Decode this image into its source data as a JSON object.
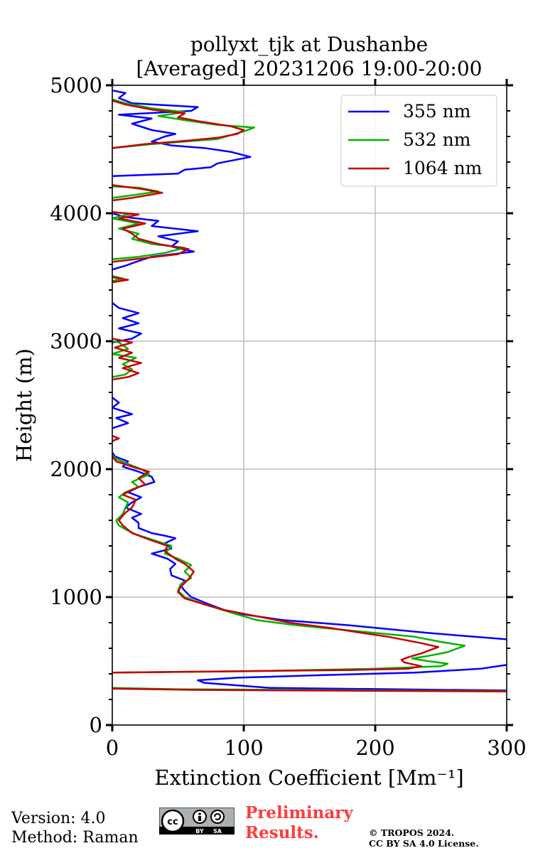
{
  "footer": {
    "version": "Version: 4.0",
    "method": "Method: Raman",
    "preliminary_line1": "Preliminary",
    "preliminary_line2": "Results.",
    "copyright_line1": "© TROPOS 2024.",
    "copyright_line2": "CC BY SA 4.0 License.",
    "license_badge_by": "BY",
    "license_badge_sa": "SA",
    "license_badge_cc": "cc"
  },
  "chart_data": {
    "type": "line",
    "title_line1": "pollyxt_tjk at Dushanbe",
    "title_line2": "[Averaged] 20231206 19:00-20:00",
    "xlabel": "Extinction Coefficient [Mm⁻¹]",
    "ylabel": "Height (m)",
    "xlim": [
      0,
      300
    ],
    "ylim": [
      0,
      5000
    ],
    "xticks": [
      0,
      100,
      200,
      300
    ],
    "yticks": [
      0,
      1000,
      2000,
      3000,
      4000,
      5000
    ],
    "grid": true,
    "legend_position": "top-right",
    "series": [
      {
        "name": "355 nm",
        "color": "#0000ff",
        "points": [
          [
            300,
            270
          ],
          [
            120,
            290
          ],
          [
            70,
            330
          ],
          [
            65,
            350
          ],
          [
            95,
            370
          ],
          [
            160,
            390
          ],
          [
            230,
            410
          ],
          [
            280,
            440
          ],
          [
            300,
            470
          ],
          [
            null,
            null
          ],
          [
            300,
            670
          ],
          [
            240,
            720
          ],
          [
            180,
            780
          ],
          [
            130,
            820
          ],
          [
            90,
            880
          ],
          [
            72,
            950
          ],
          [
            60,
            1000
          ],
          [
            55,
            1050
          ],
          [
            52,
            1090
          ],
          [
            55,
            1130
          ],
          [
            45,
            1170
          ],
          [
            44,
            1220
          ],
          [
            48,
            1260
          ],
          [
            42,
            1300
          ],
          [
            30,
            1340
          ],
          [
            45,
            1380
          ],
          [
            40,
            1420
          ],
          [
            48,
            1460
          ],
          [
            40,
            1480
          ],
          [
            30,
            1500
          ],
          [
            20,
            1540
          ],
          [
            20,
            1580
          ],
          [
            15,
            1620
          ],
          [
            22,
            1650
          ],
          [
            10,
            1700
          ],
          [
            15,
            1740
          ],
          [
            22,
            1780
          ],
          [
            12,
            1820
          ],
          [
            20,
            1860
          ],
          [
            32,
            1900
          ],
          [
            30,
            1940
          ],
          [
            20,
            1980
          ],
          [
            8,
            2020
          ],
          [
            12,
            2060
          ],
          [
            2,
            2100
          ],
          [
            0,
            2130
          ],
          [
            null,
            null
          ],
          [
            0,
            2320
          ],
          [
            12,
            2360
          ],
          [
            3,
            2400
          ],
          [
            15,
            2430
          ],
          [
            0,
            2480
          ],
          [
            5,
            2520
          ],
          [
            0,
            2560
          ],
          [
            null,
            null
          ],
          [
            0,
            2990
          ],
          [
            15,
            3020
          ],
          [
            22,
            3060
          ],
          [
            5,
            3100
          ],
          [
            20,
            3140
          ],
          [
            8,
            3180
          ],
          [
            20,
            3220
          ],
          [
            5,
            3260
          ],
          [
            0,
            3300
          ],
          [
            null,
            null
          ],
          [
            0,
            3560
          ],
          [
            10,
            3590
          ],
          [
            18,
            3620
          ],
          [
            30,
            3660
          ],
          [
            62,
            3700
          ],
          [
            45,
            3740
          ],
          [
            50,
            3780
          ],
          [
            35,
            3820
          ],
          [
            65,
            3860
          ],
          [
            30,
            3900
          ],
          [
            35,
            3940
          ],
          [
            10,
            3970
          ],
          [
            0,
            4000
          ],
          [
            null,
            null
          ],
          [
            0,
            4290
          ],
          [
            50,
            4310
          ],
          [
            55,
            4340
          ],
          [
            75,
            4360
          ],
          [
            80,
            4390
          ],
          [
            105,
            4440
          ],
          [
            90,
            4480
          ],
          [
            70,
            4510
          ],
          [
            45,
            4530
          ],
          [
            30,
            4560
          ],
          [
            40,
            4600
          ],
          [
            48,
            4620
          ],
          [
            30,
            4650
          ],
          [
            15,
            4700
          ],
          [
            30,
            4740
          ],
          [
            5,
            4770
          ],
          [
            60,
            4800
          ],
          [
            65,
            4830
          ],
          [
            15,
            4860
          ],
          [
            5,
            4900
          ],
          [
            10,
            4940
          ],
          [
            0,
            4960
          ]
        ]
      },
      {
        "name": "532 nm",
        "color": "#00b400",
        "points": [
          [
            300,
            265
          ],
          [
            50,
            280
          ],
          [
            0,
            290
          ],
          [
            null,
            null
          ],
          [
            0,
            410
          ],
          [
            100,
            420
          ],
          [
            200,
            440
          ],
          [
            250,
            460
          ],
          [
            255,
            480
          ],
          [
            240,
            500
          ],
          [
            228,
            520
          ],
          [
            240,
            540
          ],
          [
            255,
            570
          ],
          [
            268,
            620
          ],
          [
            250,
            650
          ],
          [
            230,
            690
          ],
          [
            200,
            720
          ],
          [
            170,
            750
          ],
          [
            140,
            780
          ],
          [
            110,
            820
          ],
          [
            90,
            880
          ],
          [
            68,
            950
          ],
          [
            55,
            1000
          ],
          [
            50,
            1050
          ],
          [
            52,
            1100
          ],
          [
            60,
            1150
          ],
          [
            55,
            1200
          ],
          [
            60,
            1250
          ],
          [
            50,
            1300
          ],
          [
            40,
            1340
          ],
          [
            45,
            1400
          ],
          [
            30,
            1450
          ],
          [
            18,
            1490
          ],
          [
            10,
            1530
          ],
          [
            5,
            1560
          ],
          [
            3,
            1600
          ],
          [
            8,
            1650
          ],
          [
            10,
            1700
          ],
          [
            12,
            1740
          ],
          [
            5,
            1780
          ],
          [
            10,
            1820
          ],
          [
            20,
            1860
          ],
          [
            15,
            1900
          ],
          [
            28,
            1960
          ],
          [
            22,
            2000
          ],
          [
            12,
            2040
          ],
          [
            3,
            2080
          ],
          [
            0,
            2110
          ],
          [
            null,
            null
          ],
          [
            0,
            2720
          ],
          [
            10,
            2740
          ],
          [
            15,
            2780
          ],
          [
            8,
            2820
          ],
          [
            18,
            2870
          ],
          [
            0,
            2900
          ],
          [
            12,
            2940
          ],
          [
            5,
            2990
          ],
          [
            0,
            3000
          ],
          [
            null,
            null
          ],
          [
            0,
            3470
          ],
          [
            8,
            3490
          ],
          [
            0,
            3510
          ],
          [
            null,
            null
          ],
          [
            0,
            3640
          ],
          [
            20,
            3660
          ],
          [
            40,
            3690
          ],
          [
            55,
            3730
          ],
          [
            30,
            3760
          ],
          [
            15,
            3800
          ],
          [
            20,
            3840
          ],
          [
            5,
            3880
          ],
          [
            20,
            3920
          ],
          [
            0,
            3960
          ],
          [
            15,
            4000
          ],
          [
            null,
            null
          ],
          [
            0,
            4120
          ],
          [
            15,
            4140
          ],
          [
            35,
            4170
          ],
          [
            20,
            4200
          ],
          [
            0,
            4210
          ],
          [
            null,
            null
          ],
          [
            0,
            4510
          ],
          [
            30,
            4540
          ],
          [
            80,
            4580
          ],
          [
            90,
            4610
          ],
          [
            100,
            4640
          ],
          [
            108,
            4670
          ],
          [
            80,
            4690
          ],
          [
            60,
            4720
          ],
          [
            35,
            4760
          ],
          [
            55,
            4790
          ],
          [
            30,
            4820
          ],
          [
            10,
            4860
          ],
          [
            0,
            4890
          ]
        ]
      },
      {
        "name": "1064 nm",
        "color": "#c80000",
        "points": [
          [
            300,
            262
          ],
          [
            60,
            275
          ],
          [
            0,
            285
          ],
          [
            null,
            null
          ],
          [
            0,
            410
          ],
          [
            90,
            420
          ],
          [
            180,
            430
          ],
          [
            225,
            440
          ],
          [
            235,
            460
          ],
          [
            222,
            490
          ],
          [
            220,
            510
          ],
          [
            225,
            530
          ],
          [
            235,
            560
          ],
          [
            248,
            610
          ],
          [
            235,
            640
          ],
          [
            210,
            690
          ],
          [
            190,
            720
          ],
          [
            165,
            760
          ],
          [
            135,
            800
          ],
          [
            105,
            860
          ],
          [
            85,
            900
          ],
          [
            68,
            950
          ],
          [
            55,
            990
          ],
          [
            50,
            1040
          ],
          [
            52,
            1080
          ],
          [
            58,
            1140
          ],
          [
            62,
            1200
          ],
          [
            55,
            1260
          ],
          [
            48,
            1300
          ],
          [
            40,
            1360
          ],
          [
            42,
            1400
          ],
          [
            28,
            1450
          ],
          [
            15,
            1500
          ],
          [
            8,
            1560
          ],
          [
            5,
            1600
          ],
          [
            10,
            1660
          ],
          [
            15,
            1700
          ],
          [
            18,
            1760
          ],
          [
            8,
            1800
          ],
          [
            15,
            1840
          ],
          [
            25,
            1880
          ],
          [
            20,
            1930
          ],
          [
            28,
            1980
          ],
          [
            15,
            2020
          ],
          [
            3,
            2060
          ],
          [
            0,
            2100
          ],
          [
            null,
            null
          ],
          [
            0,
            2220
          ],
          [
            5,
            2240
          ],
          [
            0,
            2260
          ],
          [
            null,
            null
          ],
          [
            0,
            2700
          ],
          [
            12,
            2720
          ],
          [
            20,
            2750
          ],
          [
            8,
            2790
          ],
          [
            22,
            2830
          ],
          [
            5,
            2870
          ],
          [
            15,
            2910
          ],
          [
            2,
            2950
          ],
          [
            15,
            2990
          ],
          [
            0,
            3020
          ],
          [
            null,
            null
          ],
          [
            0,
            3460
          ],
          [
            12,
            3480
          ],
          [
            0,
            3500
          ],
          [
            null,
            null
          ],
          [
            0,
            3620
          ],
          [
            25,
            3650
          ],
          [
            50,
            3680
          ],
          [
            58,
            3720
          ],
          [
            35,
            3760
          ],
          [
            20,
            3800
          ],
          [
            15,
            3840
          ],
          [
            8,
            3880
          ],
          [
            25,
            3920
          ],
          [
            5,
            3960
          ],
          [
            20,
            3990
          ],
          [
            0,
            4010
          ],
          [
            null,
            null
          ],
          [
            0,
            4100
          ],
          [
            15,
            4120
          ],
          [
            38,
            4160
          ],
          [
            22,
            4190
          ],
          [
            0,
            4220
          ],
          [
            null,
            null
          ],
          [
            0,
            4510
          ],
          [
            25,
            4540
          ],
          [
            60,
            4570
          ],
          [
            80,
            4590
          ],
          [
            95,
            4620
          ],
          [
            100,
            4650
          ],
          [
            90,
            4680
          ],
          [
            65,
            4720
          ],
          [
            50,
            4750
          ],
          [
            55,
            4780
          ],
          [
            30,
            4810
          ],
          [
            10,
            4850
          ],
          [
            0,
            4880
          ]
        ]
      }
    ]
  }
}
